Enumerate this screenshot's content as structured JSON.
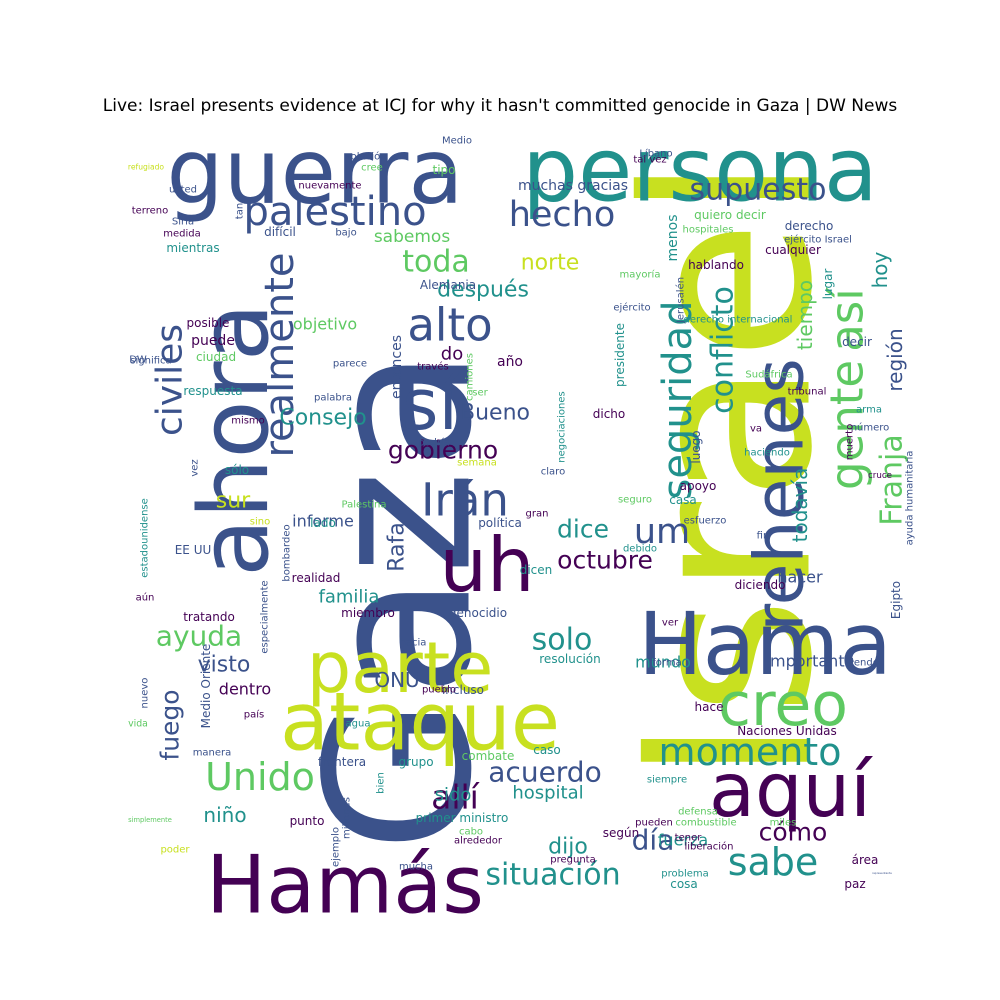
{
  "title": "Live: Israel presents evidence at ICJ for why it hasn't committed genocide in Gaza | DW News",
  "chart_data": {
    "type": "wordcloud",
    "palette": [
      "#440154",
      "#3b528b",
      "#21918c",
      "#5ec962",
      "#c8e020"
    ],
    "words": [
      {
        "text": "Israel",
        "color": "#c8e020",
        "rotate": -90
      },
      {
        "text": "Gaza",
        "color": "#3b528b",
        "rotate": -90
      },
      {
        "text": "persona",
        "color": "#21918c",
        "rotate": 0
      },
      {
        "text": "guerra",
        "color": "#3b528b",
        "rotate": 0
      },
      {
        "text": "Hama",
        "color": "#3b528b",
        "rotate": 0
      },
      {
        "text": "Hamás",
        "color": "#440154",
        "rotate": 0
      },
      {
        "text": "ahora",
        "color": "#3b528b",
        "rotate": -90
      },
      {
        "text": "ataque",
        "color": "#c8e020",
        "rotate": 0
      },
      {
        "text": "parte",
        "color": "#c8e020",
        "rotate": 0
      },
      {
        "text": "rehenes",
        "color": "#3b528b",
        "rotate": -90
      },
      {
        "text": "creo",
        "color": "#5ec962",
        "rotate": 0
      },
      {
        "text": "aquí",
        "color": "#440154",
        "rotate": 0
      },
      {
        "text": "uh",
        "color": "#440154",
        "rotate": 0
      },
      {
        "text": "sí",
        "color": "#3b528b",
        "rotate": 0
      },
      {
        "text": "gente",
        "color": "#5ec962",
        "rotate": -90
      },
      {
        "text": "así",
        "color": "#5ec962",
        "rotate": -90
      },
      {
        "text": "palestino",
        "color": "#3b528b",
        "rotate": 0
      },
      {
        "text": "supuesto",
        "color": "#3b528b",
        "rotate": 0
      },
      {
        "text": "momento",
        "color": "#21918c",
        "rotate": 0
      },
      {
        "text": "seguridad",
        "color": "#21918c",
        "rotate": -90
      },
      {
        "text": "Unido",
        "color": "#5ec962",
        "rotate": 0
      },
      {
        "text": "sabe",
        "color": "#21918c",
        "rotate": 0
      },
      {
        "text": "alto",
        "color": "#3b528b",
        "rotate": 0
      },
      {
        "text": "hecho",
        "color": "#3b528b",
        "rotate": 0
      },
      {
        "text": "realmente",
        "color": "#3b528b",
        "rotate": -90
      },
      {
        "text": "civiles",
        "color": "#3b528b",
        "rotate": -90
      },
      {
        "text": "Irán",
        "color": "#3b528b",
        "rotate": 0
      },
      {
        "text": "um",
        "color": "#3b528b",
        "rotate": 0
      },
      {
        "text": "Franja",
        "color": "#5ec962",
        "rotate": -90
      },
      {
        "text": "conflicto",
        "color": "#21918c",
        "rotate": -90
      },
      {
        "text": "acuerdo",
        "color": "#3b528b",
        "rotate": 0
      },
      {
        "text": "situación",
        "color": "#21918c",
        "rotate": 0
      },
      {
        "text": "octubre",
        "color": "#440154",
        "rotate": 0
      },
      {
        "text": "allí",
        "color": "#440154",
        "rotate": 0
      },
      {
        "text": "ayuda",
        "color": "#5ec962",
        "rotate": 0
      },
      {
        "text": "toda",
        "color": "#5ec962",
        "rotate": 0
      },
      {
        "text": "solo",
        "color": "#21918c",
        "rotate": 0
      },
      {
        "text": "día",
        "color": "#3b528b",
        "rotate": 0
      },
      {
        "text": "fuego",
        "color": "#3b528b",
        "rotate": -90
      },
      {
        "text": "todavía",
        "color": "#21918c",
        "rotate": -90
      },
      {
        "text": "tiempo",
        "color": "#5ec962",
        "rotate": -90
      },
      {
        "text": "región",
        "color": "#3b528b",
        "rotate": -90
      },
      {
        "text": "hoy",
        "color": "#21918c",
        "rotate": -90
      },
      {
        "text": "gobierno",
        "color": "#440154",
        "rotate": 0
      },
      {
        "text": "dice",
        "color": "#21918c",
        "rotate": 0
      },
      {
        "text": "cómo",
        "color": "#440154",
        "rotate": 0
      },
      {
        "text": "visto",
        "color": "#3b528b",
        "rotate": 0
      },
      {
        "text": "norte",
        "color": "#c8e020",
        "rotate": 0
      },
      {
        "text": "después",
        "color": "#21918c",
        "rotate": 0
      },
      {
        "text": "sur",
        "color": "#c8e020",
        "rotate": 0
      },
      {
        "text": "Consejo",
        "color": "#21918c",
        "rotate": 0
      },
      {
        "text": "Bueno",
        "color": "#3b528b",
        "rotate": 0
      },
      {
        "text": "dijo",
        "color": "#21918c",
        "rotate": 0
      },
      {
        "text": "Rafa",
        "color": "#3b528b",
        "rotate": -90
      },
      {
        "text": "familia",
        "color": "#21918c",
        "rotate": 0
      },
      {
        "text": "sido",
        "color": "#21918c",
        "rotate": 0
      },
      {
        "text": "niño",
        "color": "#21918c",
        "rotate": 0
      },
      {
        "text": "hospital",
        "color": "#21918c",
        "rotate": 0
      },
      {
        "text": "ONU",
        "color": "#3b528b",
        "rotate": 0
      },
      {
        "text": "do",
        "color": "#440154",
        "rotate": 0
      },
      {
        "text": "sabemos",
        "color": "#5ec962",
        "rotate": 0
      },
      {
        "text": "objetivo",
        "color": "#5ec962",
        "rotate": 0
      },
      {
        "text": "entonces",
        "color": "#3b528b",
        "rotate": -90
      },
      {
        "text": "informe",
        "color": "#3b528b",
        "rotate": 0
      },
      {
        "text": "mundo",
        "color": "#21918c",
        "rotate": 0
      },
      {
        "text": "importante",
        "color": "#3b528b",
        "rotate": 0
      },
      {
        "text": "hacer",
        "color": "#3b528b",
        "rotate": 0
      },
      {
        "text": "menos",
        "color": "#21918c",
        "rotate": -90
      },
      {
        "text": "dentro",
        "color": "#440154",
        "rotate": 0
      },
      {
        "text": "fuerza",
        "color": "#21918c",
        "rotate": 0
      },
      {
        "text": "año",
        "color": "#440154",
        "rotate": 0
      },
      {
        "text": "muchas gracias",
        "color": "#3b528b",
        "rotate": 0
      },
      {
        "text": "puede",
        "color": "#440154",
        "rotate": 0
      },
      {
        "text": "mientras",
        "color": "#21918c",
        "rotate": 0
      },
      {
        "text": "posible",
        "color": "#440154",
        "rotate": 0
      },
      {
        "text": "respuesta",
        "color": "#21918c",
        "rotate": 0
      },
      {
        "text": "ciudad",
        "color": "#5ec962",
        "rotate": 0
      },
      {
        "text": "difícil",
        "color": "#3b528b",
        "rotate": 0
      },
      {
        "text": "Alemania",
        "color": "#3b528b",
        "rotate": 0
      },
      {
        "text": "apoyo",
        "color": "#440154",
        "rotate": 0
      },
      {
        "text": "casa",
        "color": "#21918c",
        "rotate": 0
      },
      {
        "text": "realidad",
        "color": "#440154",
        "rotate": 0
      },
      {
        "text": "EE UU",
        "color": "#3b528b",
        "rotate": 0
      },
      {
        "text": "tratando",
        "color": "#440154",
        "rotate": 0
      },
      {
        "text": "miembro",
        "color": "#440154",
        "rotate": 0
      },
      {
        "text": "genocidio",
        "color": "#3b528b",
        "rotate": 0
      },
      {
        "text": "resolución",
        "color": "#21918c",
        "rotate": 0
      },
      {
        "text": "incluso",
        "color": "#3b528b",
        "rotate": 0
      },
      {
        "text": "hace",
        "color": "#440154",
        "rotate": 0
      },
      {
        "text": "frontera",
        "color": "#3b528b",
        "rotate": 0
      },
      {
        "text": "grupo",
        "color": "#21918c",
        "rotate": 0
      },
      {
        "text": "combate",
        "color": "#5ec962",
        "rotate": 0
      },
      {
        "text": "caso",
        "color": "#21918c",
        "rotate": 0
      },
      {
        "text": "punto",
        "color": "#440154",
        "rotate": 0
      },
      {
        "text": "primer ministro",
        "color": "#21918c",
        "rotate": 0
      },
      {
        "text": "según",
        "color": "#440154",
        "rotate": 0
      },
      {
        "text": "cosa",
        "color": "#21918c",
        "rotate": 0
      },
      {
        "text": "paz",
        "color": "#440154",
        "rotate": 0
      },
      {
        "text": "área",
        "color": "#440154",
        "rotate": 0
      },
      {
        "text": "Naciones Unidas",
        "color": "#440154",
        "rotate": 0
      },
      {
        "text": "diciendo",
        "color": "#440154",
        "rotate": 0
      },
      {
        "text": "lugar",
        "color": "#21918c",
        "rotate": -90
      },
      {
        "text": "decir",
        "color": "#3b528b",
        "rotate": 0
      },
      {
        "text": "hablando",
        "color": "#440154",
        "rotate": 0
      },
      {
        "text": "derecho",
        "color": "#3b528b",
        "rotate": 0
      },
      {
        "text": "cualquier",
        "color": "#440154",
        "rotate": 0
      },
      {
        "text": "quiero decir",
        "color": "#5ec962",
        "rotate": 0
      },
      {
        "text": "sólo",
        "color": "#21918c",
        "rotate": 0
      },
      {
        "text": "lado",
        "color": "#21918c",
        "rotate": 0
      },
      {
        "text": "política",
        "color": "#3b528b",
        "rotate": 0
      },
      {
        "text": "dicen",
        "color": "#21918c",
        "rotate": 0
      },
      {
        "text": "presidente",
        "color": "#21918c",
        "rotate": -90
      },
      {
        "text": "luego",
        "color": "#3b528b",
        "rotate": -90
      },
      {
        "text": "dicho",
        "color": "#440154",
        "rotate": 0
      },
      {
        "text": "tipo",
        "color": "#5ec962",
        "rotate": 0
      },
      {
        "text": "Egipto",
        "color": "#3b528b",
        "rotate": -90
      },
      {
        "text": "estadounidense",
        "color": "#21918c",
        "rotate": -90
      },
      {
        "text": "aún",
        "color": "#440154",
        "rotate": 0
      },
      {
        "text": "ayuda humanitaria",
        "color": "#3b528b",
        "rotate": -90
      },
      {
        "text": "Jerusalén",
        "color": "#3b528b",
        "rotate": -90
      },
      {
        "text": "Medio Oriente",
        "color": "#3b528b",
        "rotate": -90
      },
      {
        "text": "especialmente",
        "color": "#3b528b",
        "rotate": -90
      },
      {
        "text": "negociaciones",
        "color": "#21918c",
        "rotate": -90
      },
      {
        "text": "hospitales",
        "color": "#5ec962",
        "rotate": 0
      },
      {
        "text": "ejército Israel",
        "color": "#3b528b",
        "rotate": 0
      },
      {
        "text": "derecho internacional",
        "color": "#21918c",
        "rotate": 0
      },
      {
        "text": "mayoría",
        "color": "#5ec962",
        "rotate": 0
      },
      {
        "text": "ejército",
        "color": "#3b528b",
        "rotate": 0
      },
      {
        "text": "Sudáfrica",
        "color": "#5ec962",
        "rotate": 0
      },
      {
        "text": "tribunal",
        "color": "#440154",
        "rotate": 0
      },
      {
        "text": "arma",
        "color": "#21918c",
        "rotate": 0
      },
      {
        "text": "número",
        "color": "#3b528b",
        "rotate": 0
      },
      {
        "text": "va",
        "color": "#440154",
        "rotate": 0
      },
      {
        "text": "haciendo",
        "color": "#21918c",
        "rotate": 0
      },
      {
        "text": "cruce",
        "color": "#440154",
        "rotate": 0
      },
      {
        "text": "esfuerzo",
        "color": "#3b528b",
        "rotate": 0
      },
      {
        "text": "debido",
        "color": "#21918c",
        "rotate": 0
      },
      {
        "text": "fin",
        "color": "#3b528b",
        "rotate": 0
      },
      {
        "text": "ver",
        "color": "#440154",
        "rotate": 0
      },
      {
        "text": "forma",
        "color": "#3b528b",
        "rotate": 0
      },
      {
        "text": "viendo",
        "color": "#3b528b",
        "rotate": 0
      },
      {
        "text": "siempre",
        "color": "#21918c",
        "rotate": 0
      },
      {
        "text": "defensa",
        "color": "#5ec962",
        "rotate": 0
      },
      {
        "text": "combustible",
        "color": "#5ec962",
        "rotate": 0
      },
      {
        "text": "pueden",
        "color": "#440154",
        "rotate": 0
      },
      {
        "text": "miles",
        "color": "#5ec962",
        "rotate": 0
      },
      {
        "text": "liberación",
        "color": "#440154",
        "rotate": 0
      },
      {
        "text": "representante",
        "color": "#3b528b",
        "rotate": 0
      },
      {
        "text": "problema",
        "color": "#21918c",
        "rotate": 0
      },
      {
        "text": "pregunta",
        "color": "#440154",
        "rotate": 0
      },
      {
        "text": "hacia",
        "color": "#3b528b",
        "rotate": 0
      },
      {
        "text": "pueblo",
        "color": "#440154",
        "rotate": 0
      },
      {
        "text": "país",
        "color": "#440154",
        "rotate": 0
      },
      {
        "text": "vida",
        "color": "#5ec962",
        "rotate": 0
      },
      {
        "text": "agua",
        "color": "#21918c",
        "rotate": 0
      },
      {
        "text": "manera",
        "color": "#3b528b",
        "rotate": 0
      },
      {
        "text": "bien",
        "color": "#21918c",
        "rotate": -90
      },
      {
        "text": "millones",
        "color": "#3b528b",
        "rotate": -90
      },
      {
        "text": "simplemente",
        "color": "#5ec962",
        "rotate": 0
      },
      {
        "text": "cabo",
        "color": "#5ec962",
        "rotate": 0
      },
      {
        "text": "alrededor",
        "color": "#440154",
        "rotate": 0
      },
      {
        "text": "ejemplo",
        "color": "#3b528b",
        "rotate": -90
      },
      {
        "text": "mucha",
        "color": "#3b528b",
        "rotate": 0
      },
      {
        "text": "poder",
        "color": "#c8e020",
        "rotate": 0
      },
      {
        "text": "nuevo",
        "color": "#3b528b",
        "rotate": -90
      },
      {
        "text": "sino",
        "color": "#c8e020",
        "rotate": 0
      },
      {
        "text": "bombardeo",
        "color": "#3b528b",
        "rotate": -90
      },
      {
        "text": "vez",
        "color": "#3b528b",
        "rotate": -90
      },
      {
        "text": "palabra",
        "color": "#3b528b",
        "rotate": 0
      },
      {
        "text": "mismo",
        "color": "#440154",
        "rotate": 0
      },
      {
        "text": "parece",
        "color": "#3b528b",
        "rotate": 0
      },
      {
        "text": "través",
        "color": "#440154",
        "rotate": 0
      },
      {
        "text": "camiones",
        "color": "#5ec962",
        "rotate": -90
      },
      {
        "text": "ser",
        "color": "#5ec962",
        "rotate": 0
      },
      {
        "text": "podría",
        "color": "#3b528b",
        "rotate": 0
      },
      {
        "text": "semana",
        "color": "#c8e020",
        "rotate": 0
      },
      {
        "text": "Palestina",
        "color": "#5ec962",
        "rotate": 0
      },
      {
        "text": "claro",
        "color": "#3b528b",
        "rotate": 0
      },
      {
        "text": "seguro",
        "color": "#5ec962",
        "rotate": 0
      },
      {
        "text": "gran",
        "color": "#440154",
        "rotate": 0
      },
      {
        "text": "DW",
        "color": "#3b528b",
        "rotate": 0
      },
      {
        "text": "significa",
        "color": "#3b528b",
        "rotate": 0
      },
      {
        "text": "medida",
        "color": "#440154",
        "rotate": 0
      },
      {
        "text": "tan",
        "color": "#3b528b",
        "rotate": -90
      },
      {
        "text": "bajo",
        "color": "#3b528b",
        "rotate": 0
      },
      {
        "text": "terreno",
        "color": "#440154",
        "rotate": 0
      },
      {
        "text": "Siria",
        "color": "#3b528b",
        "rotate": 0
      },
      {
        "text": "usted",
        "color": "#3b528b",
        "rotate": 0
      },
      {
        "text": "nuevamente",
        "color": "#440154",
        "rotate": 0
      },
      {
        "text": "refugiado",
        "color": "#c8e020",
        "rotate": 0
      },
      {
        "text": "solución",
        "color": "#3b528b",
        "rotate": 0
      },
      {
        "text": "cree",
        "color": "#5ec962",
        "rotate": 0
      },
      {
        "text": "Medio",
        "color": "#3b528b",
        "rotate": 0
      },
      {
        "text": "tal vez",
        "color": "#440154",
        "rotate": 0
      },
      {
        "text": "Líbano",
        "color": "#3b528b",
        "rotate": 0
      },
      {
        "text": "tener",
        "color": "#440154",
        "rotate": 0
      },
      {
        "text": "muerto",
        "color": "#440154",
        "rotate": -90
      },
      {
        "text": "FDI",
        "color": "#c8e020",
        "rotate": 0
      },
      {
        "text": "quiere",
        "color": "#440154",
        "rotate": 0
      },
      {
        "text": "países",
        "color": "#3b528b",
        "rotate": -90
      }
    ]
  }
}
